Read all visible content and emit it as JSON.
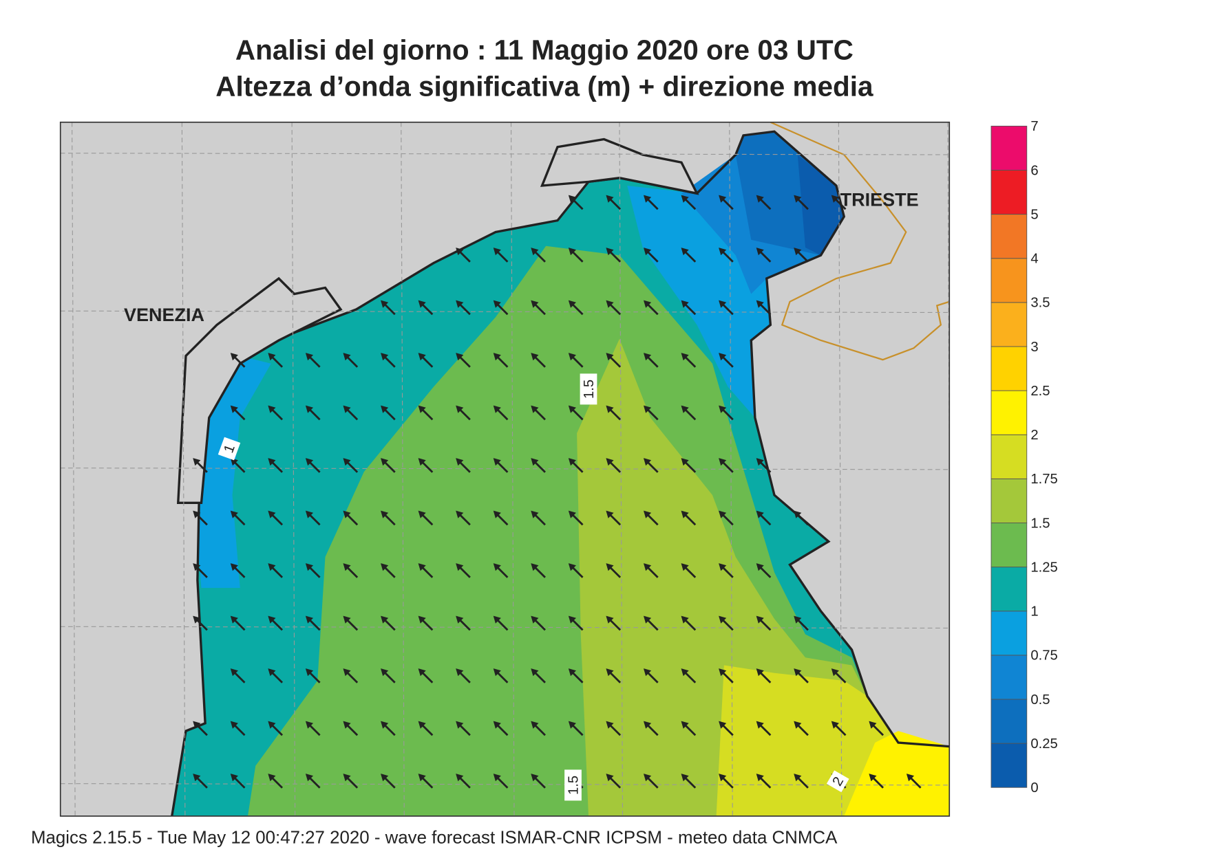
{
  "header": {
    "title": "Analisi del giorno :  11   Maggio  2020   ore 03 UTC",
    "subtitle": "Altezza d’onda significativa (m) + direzione media"
  },
  "map": {
    "places": [
      "VENEZIA",
      "TRIESTE"
    ],
    "contour_labels": [
      "1.5",
      "1",
      "1.5",
      "2"
    ]
  },
  "legend": {
    "levels": [
      0,
      0.25,
      0.5,
      0.75,
      1,
      1.25,
      1.5,
      1.75,
      2,
      2.5,
      3,
      3.5,
      4,
      5,
      6,
      7
    ],
    "colors": [
      "#0b5cad",
      "#0d6fbe",
      "#1085d3",
      "#0aa0e0",
      "#0aaba5",
      "#6cbb4f",
      "#a4c83a",
      "#d6dd22",
      "#fff200",
      "#ffd200",
      "#fbb01c",
      "#f7941d",
      "#f27725",
      "#ed1c24",
      "#ec0c6b"
    ]
  },
  "footer": "Magics 2.15.5 - Tue May 12 00:47:27 2020 - wave forecast  ISMAR-CNR  ICPSM - meteo data   CNMCA"
}
